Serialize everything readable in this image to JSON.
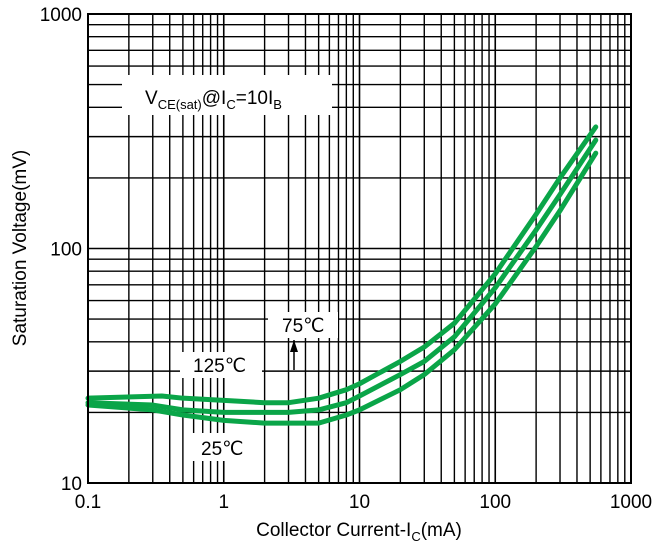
{
  "chart_data": {
    "type": "line",
    "title": "",
    "x_scale": "log",
    "y_scale": "log",
    "xlim": [
      0.1,
      1000
    ],
    "ylim": [
      10,
      1000
    ],
    "grid": true,
    "x_ticks": [
      "0.1",
      "1",
      "10",
      "100",
      "1000"
    ],
    "y_ticks": [
      "10",
      "100",
      "1000"
    ],
    "xlabel": {
      "prefix": "Collector Current-I",
      "sub": "C",
      "suffix": "(mA)"
    },
    "ylabel": "Saturation Voltage(mV)",
    "condition": {
      "v": "V",
      "v_sub": "CE(sat)",
      "mid": "@I",
      "ic_sub": "C",
      "eq": "=10I",
      "ib_sub": "B"
    },
    "line_color": "#0aa548",
    "series": [
      {
        "name": "125℃",
        "x": [
          0.1,
          0.35,
          0.5,
          1,
          2,
          3,
          5,
          8,
          10,
          20,
          30,
          50,
          100,
          200,
          300,
          550
        ],
        "y": [
          23,
          23.5,
          23,
          22.5,
          22,
          22,
          23,
          25,
          26.5,
          33,
          38,
          48,
          78,
          140,
          200,
          330
        ]
      },
      {
        "name": "75℃",
        "x": [
          0.1,
          0.3,
          0.5,
          1,
          2,
          3,
          5,
          8,
          10,
          20,
          30,
          50,
          100,
          200,
          300,
          550
        ],
        "y": [
          22,
          21.5,
          20.5,
          20,
          20,
          20,
          20.5,
          22,
          23.5,
          29,
          33,
          42,
          68,
          120,
          170,
          290
        ]
      },
      {
        "name": "25℃",
        "x": [
          0.1,
          0.3,
          0.5,
          1,
          2,
          3,
          5,
          8,
          10,
          20,
          30,
          50,
          100,
          200,
          300,
          550
        ],
        "y": [
          21.5,
          20.5,
          19.5,
          18.5,
          18,
          18,
          18,
          19.5,
          20.5,
          25,
          29,
          37,
          58,
          102,
          145,
          255
        ]
      }
    ],
    "annotations": [
      "125℃",
      "75℃",
      "25℃"
    ]
  }
}
